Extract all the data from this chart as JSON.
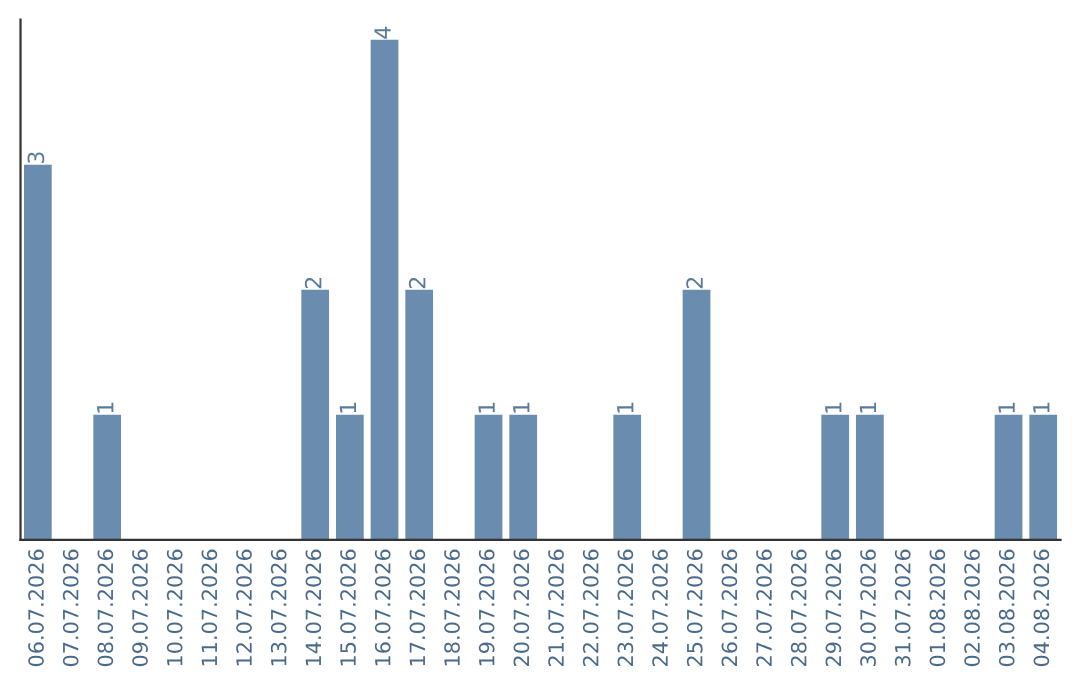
{
  "chart_data": {
    "type": "bar",
    "categories": [
      "06.07.2026",
      "07.07.2026",
      "08.07.2026",
      "09.07.2026",
      "10.07.2026",
      "11.07.2026",
      "12.07.2026",
      "13.07.2026",
      "14.07.2026",
      "15.07.2026",
      "16.07.2026",
      "17.07.2026",
      "18.07.2026",
      "19.07.2026",
      "20.07.2026",
      "21.07.2026",
      "22.07.2026",
      "23.07.2026",
      "24.07.2026",
      "25.07.2026",
      "26.07.2026",
      "27.07.2026",
      "28.07.2026",
      "29.07.2026",
      "30.07.2026",
      "31.07.2026",
      "01.08.2026",
      "02.08.2026",
      "03.08.2026",
      "04.08.2026"
    ],
    "values": [
      3,
      0,
      1,
      0,
      0,
      0,
      0,
      0,
      2,
      1,
      4,
      2,
      0,
      1,
      1,
      0,
      0,
      1,
      0,
      2,
      0,
      0,
      0,
      1,
      1,
      0,
      0,
      0,
      1,
      1
    ],
    "value_labels": [
      "3",
      null,
      "1",
      null,
      null,
      null,
      null,
      null,
      "2",
      "1",
      "4",
      "2",
      null,
      "1",
      "1",
      null,
      null,
      "1",
      null,
      "2",
      null,
      null,
      null,
      "1",
      "1",
      null,
      null,
      null,
      "1",
      "1"
    ],
    "color": "#6a8caf",
    "ylim": [
      0,
      4.16
    ],
    "tick_labels": "x",
    "grid": false,
    "legend": false
  }
}
